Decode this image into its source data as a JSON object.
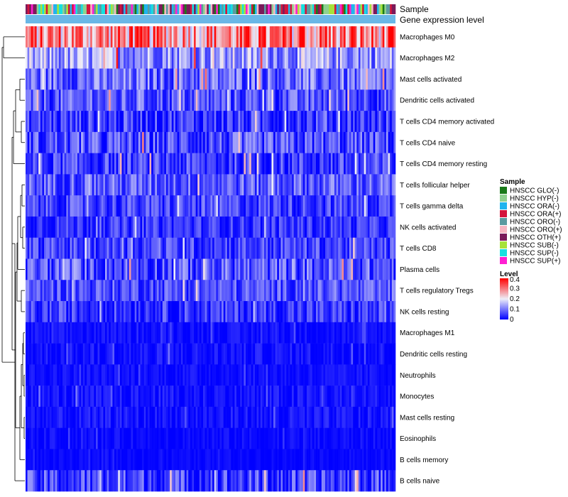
{
  "chart_data": {
    "type": "heatmap",
    "annotation_labels": [
      "Sample",
      "Gene expression level"
    ],
    "rows": [
      {
        "name": "Macrophages M0",
        "mean": 0.27,
        "spread": 0.13
      },
      {
        "name": "Macrophages M2",
        "mean": 0.12,
        "spread": 0.09
      },
      {
        "name": "Mast cells activated",
        "mean": 0.08,
        "spread": 0.08
      },
      {
        "name": "Dendritic cells activated",
        "mean": 0.06,
        "spread": 0.07
      },
      {
        "name": "T cells CD4 memory activated",
        "mean": 0.04,
        "spread": 0.07
      },
      {
        "name": "T cells CD4 naive",
        "mean": 0.05,
        "spread": 0.08
      },
      {
        "name": "T cells CD4 memory resting",
        "mean": 0.04,
        "spread": 0.07
      },
      {
        "name": "T cells follicular helper",
        "mean": 0.07,
        "spread": 0.07
      },
      {
        "name": "T cells gamma delta",
        "mean": 0.05,
        "spread": 0.06
      },
      {
        "name": "NK cells activated",
        "mean": 0.04,
        "spread": 0.05
      },
      {
        "name": "T cells CD8",
        "mean": 0.05,
        "spread": 0.06
      },
      {
        "name": "Plasma cells",
        "mean": 0.06,
        "spread": 0.08
      },
      {
        "name": "T cells regulatory  Tregs",
        "mean": 0.06,
        "spread": 0.06
      },
      {
        "name": "NK cells resting",
        "mean": 0.04,
        "spread": 0.06
      },
      {
        "name": "Macrophages M1",
        "mean": 0.01,
        "spread": 0.02
      },
      {
        "name": "Dendritic cells resting",
        "mean": 0.01,
        "spread": 0.03
      },
      {
        "name": "Neutrophils",
        "mean": 0.01,
        "spread": 0.02
      },
      {
        "name": "Monocytes",
        "mean": 0.01,
        "spread": 0.03
      },
      {
        "name": "Mast cells resting",
        "mean": 0.01,
        "spread": 0.03
      },
      {
        "name": "Eosinophils",
        "mean": 0.005,
        "spread": 0.02
      },
      {
        "name": "B cells memory",
        "mean": 0.005,
        "spread": 0.01
      },
      {
        "name": "B cells naive",
        "mean": 0.04,
        "spread": 0.08
      }
    ],
    "n_samples": 200,
    "sample_groups": [
      {
        "name": "HNSCC GLO(-)",
        "color": "#1a7a1a"
      },
      {
        "name": "HNSCC HYP(-)",
        "color": "#8fd18f"
      },
      {
        "name": "HNSCC ORA(-)",
        "color": "#1fb4ee"
      },
      {
        "name": "HNSCC ORA(+)",
        "color": "#d4143c"
      },
      {
        "name": "HNSCC ORO(-)",
        "color": "#5b9aa0"
      },
      {
        "name": "HNSCC ORO(+)",
        "color": "#f7b6c2"
      },
      {
        "name": "HNSCC OTH(+)",
        "color": "#7b1a5a"
      },
      {
        "name": "HNSCC SUB(-)",
        "color": "#a6e23a"
      },
      {
        "name": "HNSCC SUP(-)",
        "color": "#17e0e0"
      },
      {
        "name": "HNSCC SUP(+)",
        "color": "#ff1fd2"
      }
    ],
    "gene_expression_color": "#6ab7e6",
    "legend_sample_title": "Sample",
    "legend_level_title": "Level",
    "color_scale": {
      "min": 0,
      "max": 0.4,
      "ticks": [
        "0.4",
        "0.3",
        "0.2",
        "0.1",
        "0"
      ],
      "colors": [
        "#0000ff",
        "#eeeef8",
        "#ff0000"
      ]
    },
    "dendrogram": "rows"
  }
}
